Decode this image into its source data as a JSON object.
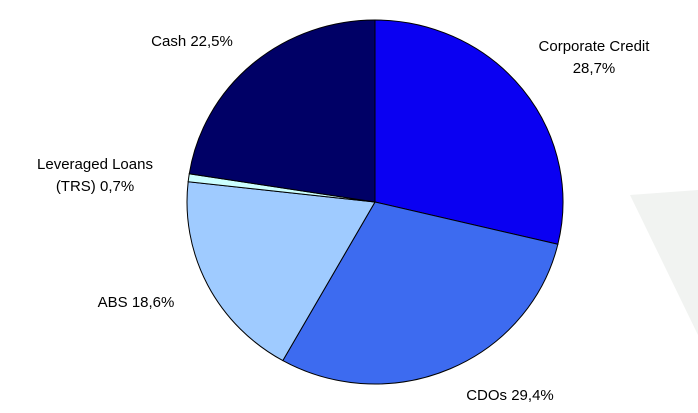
{
  "chart_data": {
    "type": "pie",
    "start_angle_deg": 0,
    "direction": "clockwise",
    "slices": [
      {
        "name": "Corporate Credit",
        "value": 28.7,
        "color": "#0a00f2",
        "label_lines": [
          "Corporate Credit",
          "28,7%"
        ]
      },
      {
        "name": "CDOs",
        "value": 29.4,
        "color": "#3d6bf0",
        "label_lines": [
          "CDOs 29,4%"
        ]
      },
      {
        "name": "ABS",
        "value": 18.6,
        "color": "#9fcbff",
        "label_lines": [
          "ABS 18,6%"
        ]
      },
      {
        "name": "Leveraged Loans (TRS)",
        "value": 0.7,
        "color": "#ccffff",
        "label_lines": [
          "Leveraged Loans",
          "(TRS) 0,7%"
        ]
      },
      {
        "name": "Cash",
        "value": 22.5,
        "color": "#000066",
        "label_lines": [
          "Cash 22,5%"
        ]
      }
    ]
  }
}
